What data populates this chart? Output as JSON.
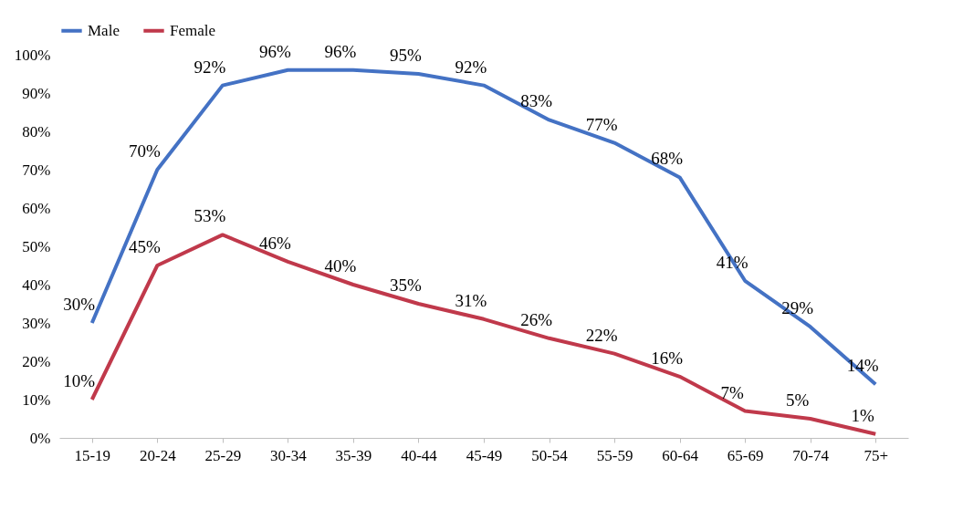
{
  "chart_data": {
    "type": "line",
    "categories": [
      "15-19",
      "20-24",
      "25-29",
      "30-34",
      "35-39",
      "40-44",
      "45-49",
      "50-54",
      "55-59",
      "60-64",
      "65-69",
      "70-74",
      "75+"
    ],
    "series": [
      {
        "name": "Male",
        "color": "#4472c4",
        "values": [
          30,
          70,
          92,
          96,
          96,
          95,
          92,
          83,
          77,
          68,
          41,
          29,
          14
        ],
        "value_labels": [
          "30%",
          "70%",
          "92%",
          "96%",
          "96%",
          "95%",
          "92%",
          "83%",
          "77%",
          "68%",
          "41%",
          "29%",
          "14%"
        ]
      },
      {
        "name": "Female",
        "color": "#c0394b",
        "values": [
          10,
          45,
          53,
          46,
          40,
          35,
          31,
          26,
          22,
          16,
          7,
          5,
          1
        ],
        "value_labels": [
          "10%",
          "45%",
          "53%",
          "46%",
          "40%",
          "35%",
          "31%",
          "26%",
          "22%",
          "16%",
          "7%",
          "5%",
          "1%"
        ]
      }
    ],
    "ylim": [
      0,
      100
    ],
    "yticks": [
      {
        "value": 0,
        "label": "0%"
      },
      {
        "value": 10,
        "label": "10%"
      },
      {
        "value": 20,
        "label": "20%"
      },
      {
        "value": 30,
        "label": "30%"
      },
      {
        "value": 40,
        "label": "40%"
      },
      {
        "value": 50,
        "label": "50%"
      },
      {
        "value": 60,
        "label": "60%"
      },
      {
        "value": 70,
        "label": "70%"
      },
      {
        "value": 80,
        "label": "80%"
      },
      {
        "value": 90,
        "label": "90%"
      },
      {
        "value": 100,
        "label": "100%"
      }
    ],
    "grid": false,
    "legend": "top",
    "marker": "none",
    "line_style": "solid"
  }
}
